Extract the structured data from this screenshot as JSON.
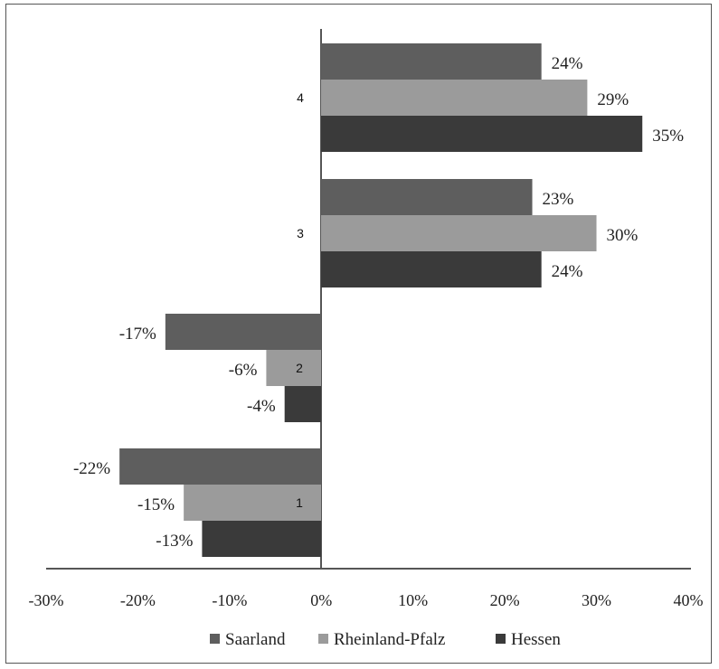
{
  "chart_data": {
    "type": "bar",
    "orientation": "horizontal",
    "categories": [
      "1",
      "2",
      "3",
      "4"
    ],
    "series": [
      {
        "name": "Saarland",
        "values": [
          -22,
          -17,
          23,
          24
        ],
        "labels": [
          "-22%",
          "-17%",
          "23%",
          "24%"
        ],
        "color": "#5e5e5e"
      },
      {
        "name": "Rheinland-Pfalz",
        "values": [
          -15,
          -6,
          30,
          29
        ],
        "labels": [
          "-15%",
          "-6%",
          "30%",
          "29%"
        ],
        "color": "#9b9b9b"
      },
      {
        "name": "Hessen",
        "values": [
          -13,
          -4,
          24,
          35
        ],
        "labels": [
          "-13%",
          "-4%",
          "24%",
          "35%"
        ],
        "color": "#3a3a3a"
      }
    ],
    "xlim": [
      -30,
      40
    ],
    "xticks": [
      "-30%",
      "-20%",
      "-10%",
      "0%",
      "10%",
      "20%",
      "30%",
      "40%"
    ],
    "grid": false,
    "legend": "bottom"
  }
}
